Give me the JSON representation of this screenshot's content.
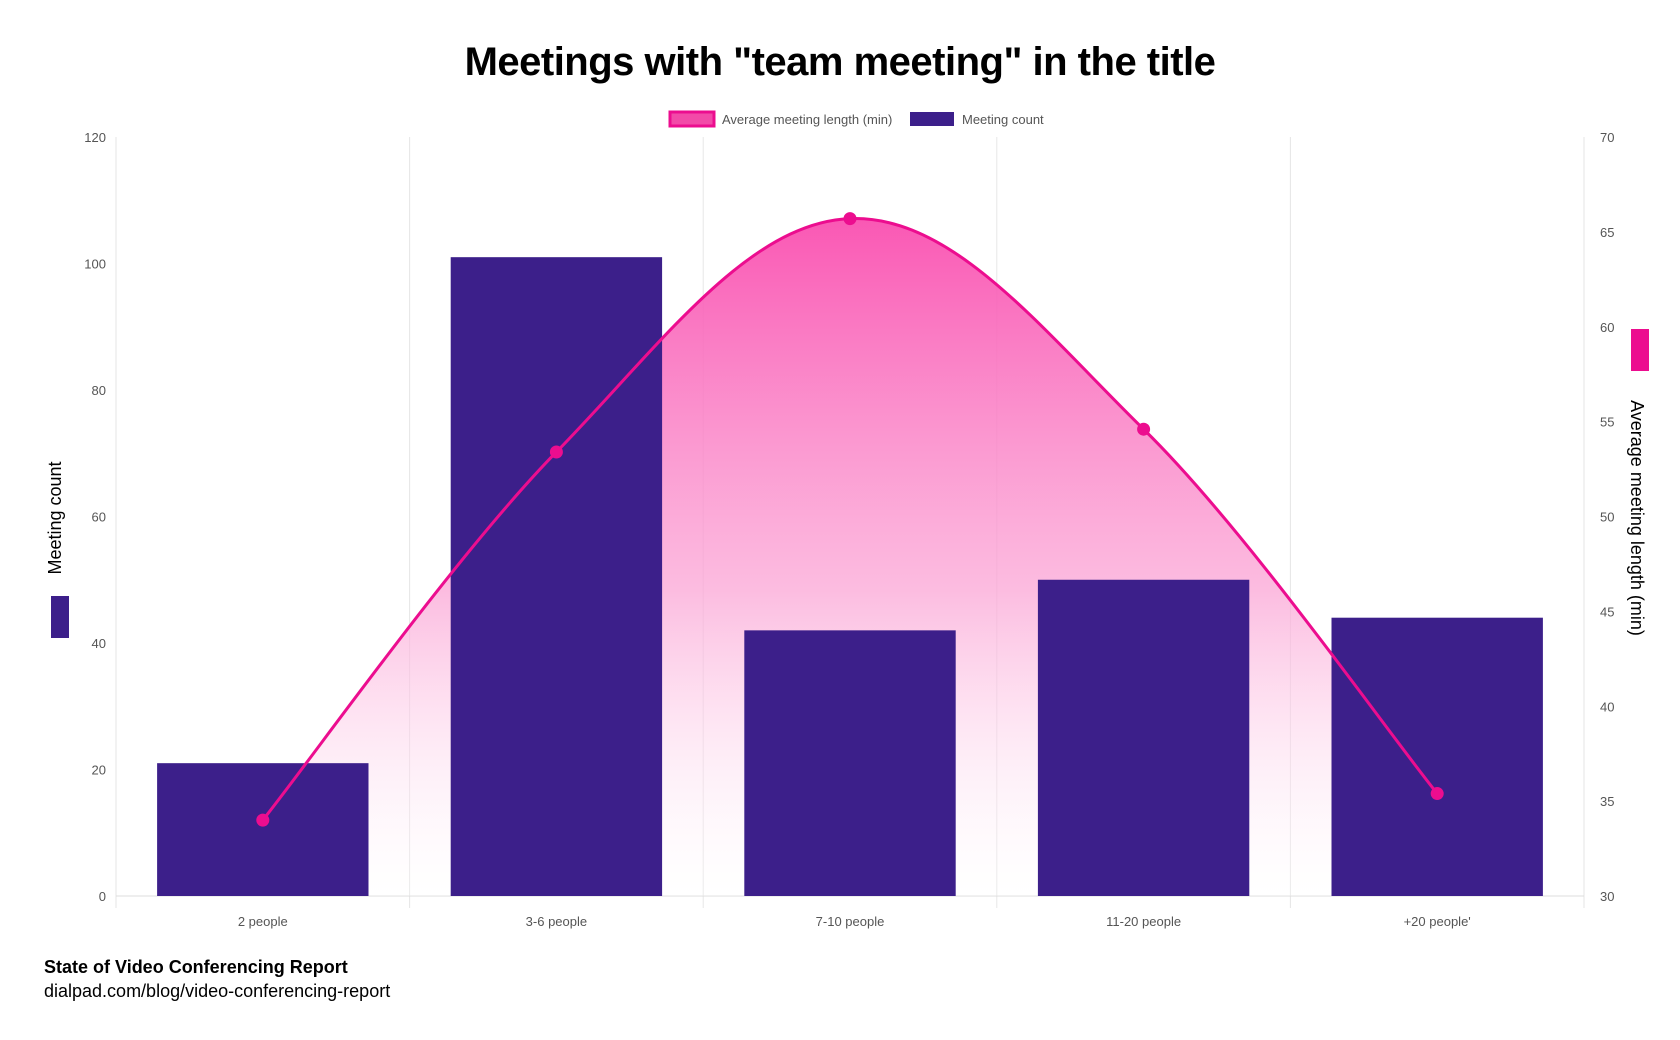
{
  "title": "Meetings with \"team meeting\" in the title",
  "footer": {
    "title": "State of Video Conferencing Report",
    "url": "dialpad.com/blog/video-conferencing-report"
  },
  "colors": {
    "bar": "#3c1f8a",
    "line": "#ec0d8f",
    "grid": "#e6e6e6"
  },
  "chart_data": {
    "type": "bar",
    "categories": [
      "2 people",
      "3-6 people",
      "7-10 people",
      "11-20 people",
      "+20 people'"
    ],
    "series": [
      {
        "name": "Meeting count",
        "type": "bar",
        "axis": "left",
        "color": "#3c1f8a",
        "values": [
          21,
          101,
          42,
          50,
          44
        ]
      },
      {
        "name": "Average meeting length (min)",
        "type": "line",
        "axis": "right",
        "color": "#ec0d8f",
        "fill": "gradient",
        "smooth": true,
        "values": [
          34,
          53.4,
          65.7,
          54.6,
          35.4
        ]
      }
    ],
    "ylabel_left": "Meeting count",
    "ylabel_right": "Average meeting length (min)",
    "ylim_left": [
      0,
      120
    ],
    "yticks_left": [
      0,
      20,
      40,
      60,
      80,
      100,
      120
    ],
    "ylim_right": [
      30,
      70
    ],
    "yticks_right": [
      30,
      35,
      40,
      45,
      50,
      55,
      60,
      65,
      70
    ],
    "legend_position": "top-center",
    "grid": "vertical"
  }
}
